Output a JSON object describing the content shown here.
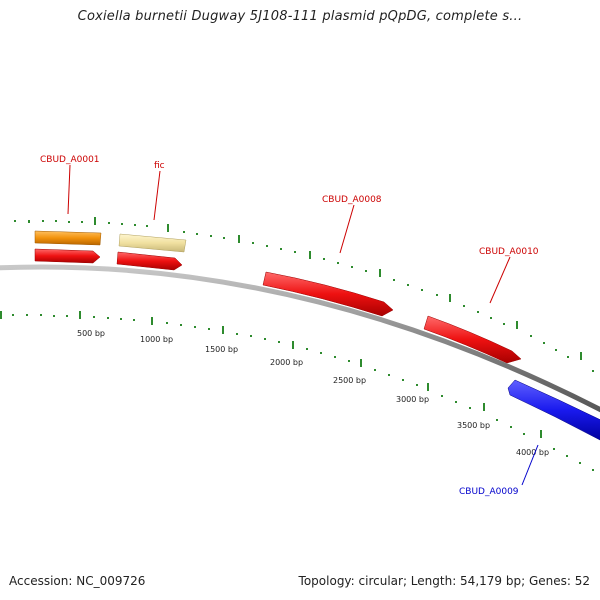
{
  "title": "Coxiella burnetii Dugway 5J108-111 plasmid pQpDG, complete s...",
  "footer": {
    "accession": "Accession: NC_009726",
    "info": "Topology: circular; Length: 54,179 bp; Genes: 52"
  },
  "colors": {
    "backbone": "#888888",
    "tick": "#2e8b2e",
    "forward_gene": "#ee1111",
    "reverse_gene": "#1a1aee",
    "orange_gene": "#f2920c",
    "pale_gene": "#f0e0a0",
    "forward_label": "#cc0000",
    "reverse_label": "#0000cc"
  },
  "scale_labels": [
    "500 bp",
    "1000 bp",
    "1500 bp",
    "2000 bp",
    "2500 bp",
    "3000 bp",
    "3500 bp",
    "4000 bp"
  ],
  "genes": [
    {
      "name": "CBUD_A0001",
      "label": "CBUD_A0001",
      "color": "orange"
    },
    {
      "name": "fic",
      "label": "fic",
      "color": "pale"
    },
    {
      "name": "CBUD_A0008",
      "label": "CBUD_A0008",
      "color": "red"
    },
    {
      "name": "CBUD_A0010",
      "label": "CBUD_A0010",
      "color": "red"
    },
    {
      "name": "CBUD_A0009",
      "label": "CBUD_A0009",
      "color": "blue"
    }
  ]
}
